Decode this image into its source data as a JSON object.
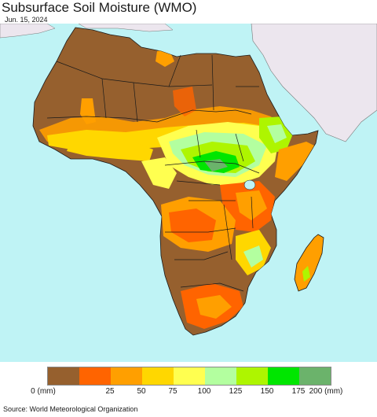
{
  "title": "Subsurface Soil Moisture (WMO)",
  "date": "Jun. 15, 2024",
  "legend": {
    "colors": [
      "#96602e",
      "#ff6400",
      "#ff9f00",
      "#ffd700",
      "#ffff50",
      "#b3ff9f",
      "#aef500",
      "#00e600",
      "#6bb36b"
    ],
    "labels": [
      "0 (mm)",
      "25",
      "50",
      "75",
      "100",
      "125",
      "150",
      "175",
      "200 (mm)"
    ]
  },
  "source": "Source: World Meteorological Organization",
  "colors": {
    "ocean": "#bff3f5",
    "non_africa_land": "#ece6ee",
    "border": "#1a1a1a"
  }
}
